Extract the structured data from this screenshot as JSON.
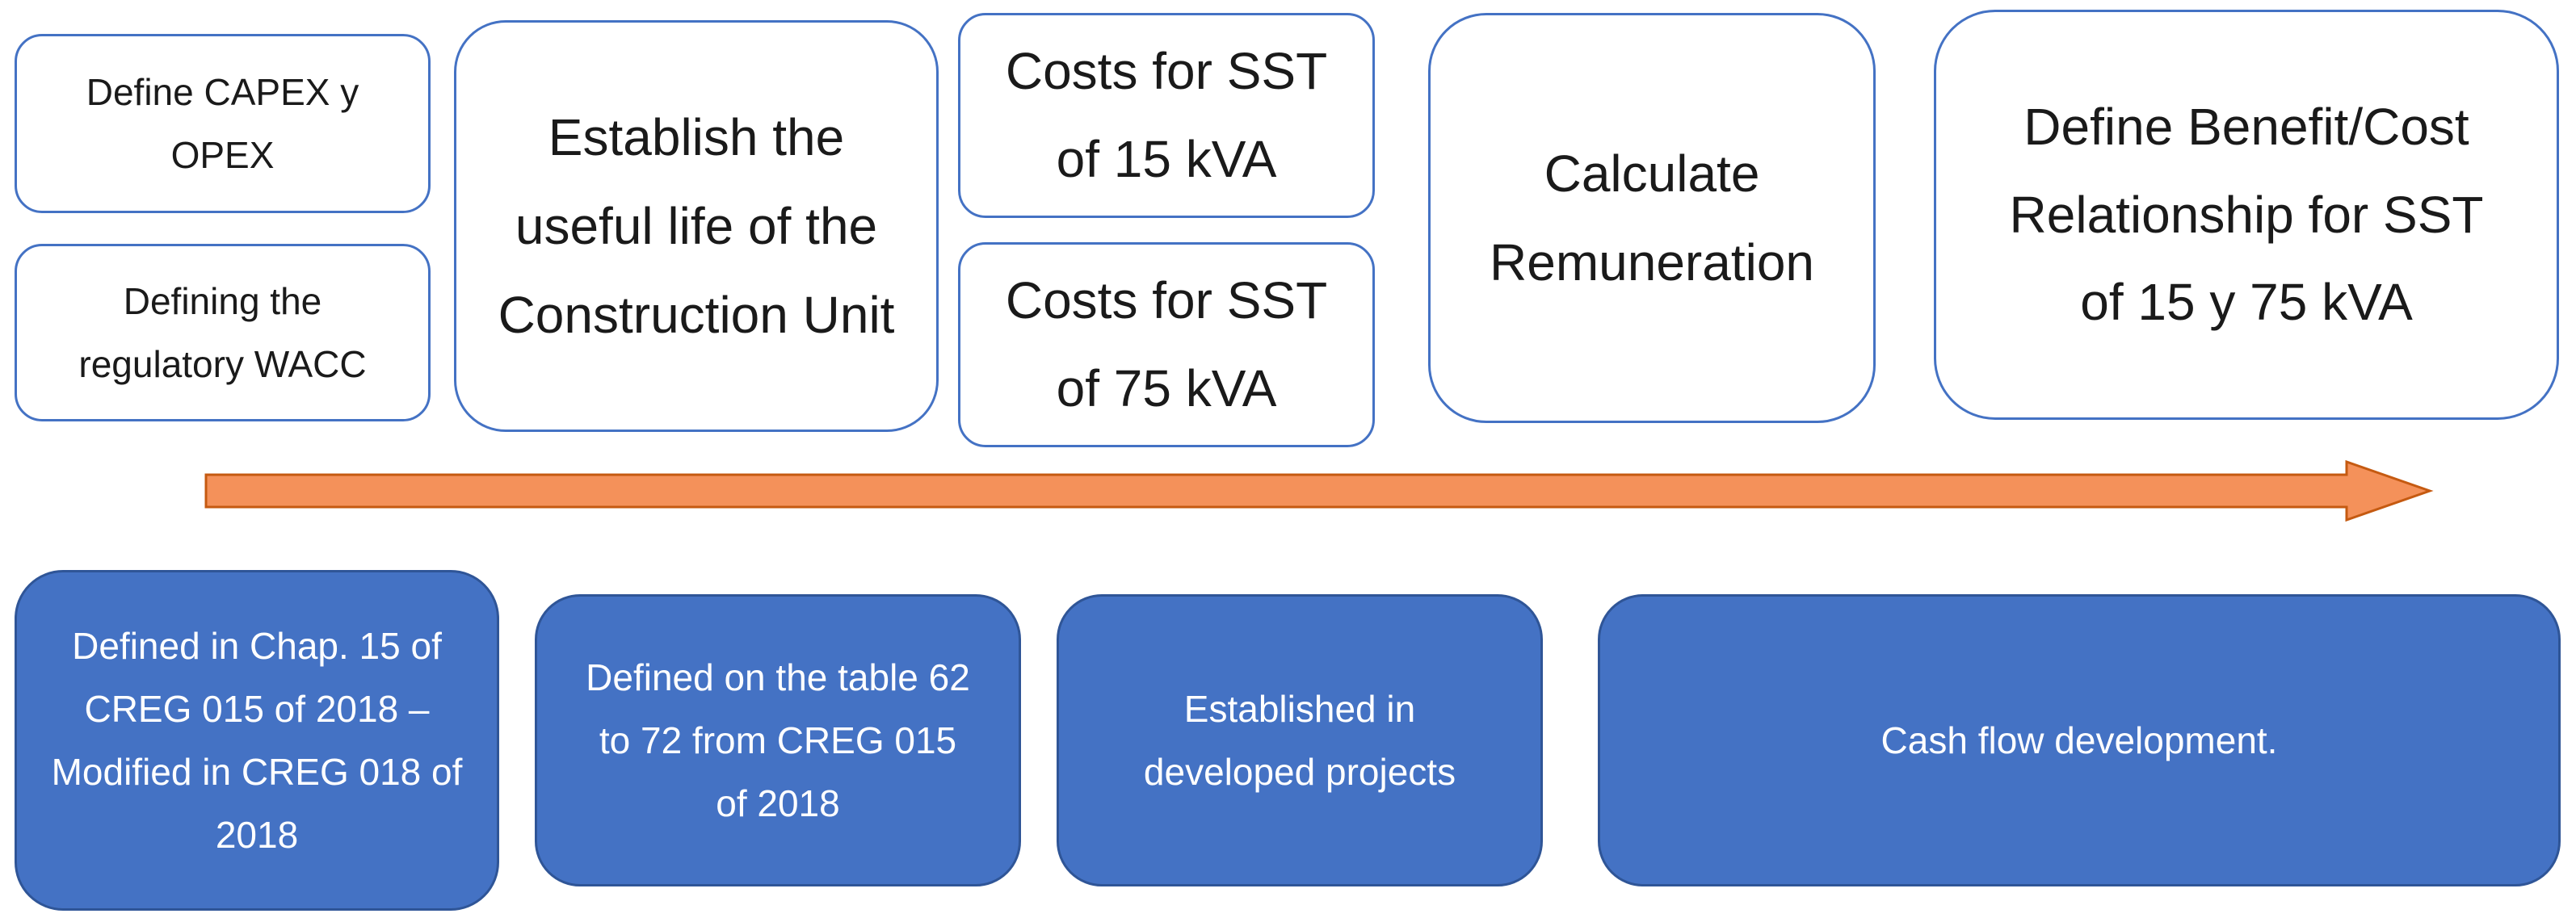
{
  "steps": {
    "capex_opex": "Define CAPEX y OPEX",
    "wacc": "Defining the regulatory WACC",
    "useful_life": "Establish the useful life of the Construction Unit",
    "costs_15": "Costs for SST of 15 kVA",
    "costs_75": "Costs for SST of 75 kVA",
    "remuneration": "Calculate Remuneration",
    "benefit_cost": "Define Benefit/Cost Relationship for SST of 15 y 75 kVA"
  },
  "notes": {
    "chap15": "Defined in Chap. 15 of CREG 015 of 2018 – Modified in CREG 018 of 2018",
    "table62": "Defined on the table 62 to 72 from CREG 015 of 2018",
    "projects": "Established in developed projects",
    "cashflow": "Cash flow development."
  },
  "colors": {
    "top_border": "#4472C4",
    "bottom_fill": "#4472C4",
    "arrow_fill": "#F4915A",
    "arrow_stroke": "#C55A11"
  }
}
